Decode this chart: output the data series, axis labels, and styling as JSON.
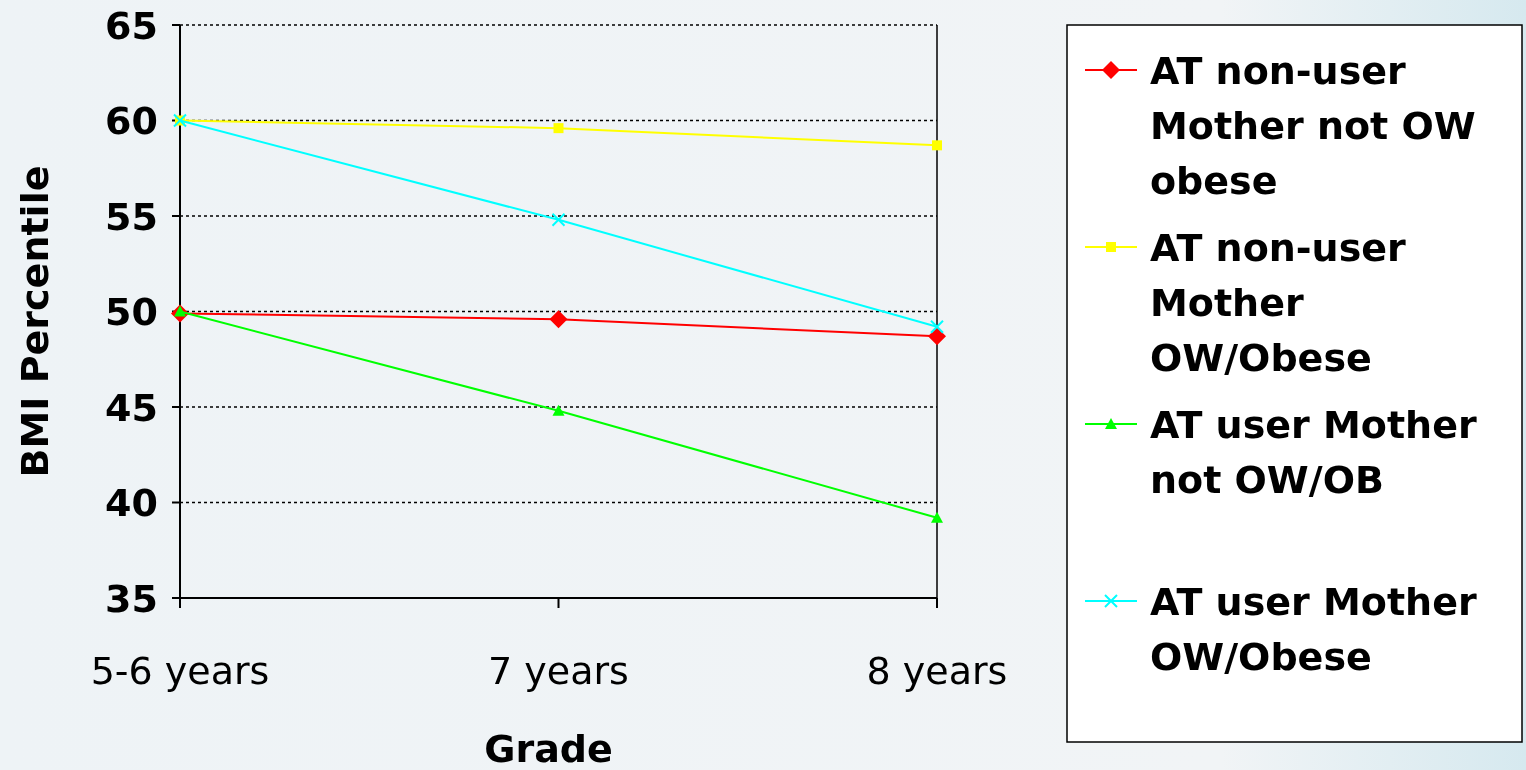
{
  "chart_data": {
    "type": "line",
    "xlabel": "Grade",
    "ylabel": "BMI Percentile",
    "categories": [
      "5-6 years",
      "7 years",
      "8 years"
    ],
    "series": [
      {
        "name": "AT non-user Mother not OW obese",
        "color": "#ff0000",
        "marker": "diamond",
        "values": [
          49.9,
          49.6,
          48.7
        ]
      },
      {
        "name": "AT non-user Mother OW/Obese",
        "color": "#ffff00",
        "marker": "square",
        "values": [
          60,
          59.6,
          58.7
        ]
      },
      {
        "name": "AT user Mother not OW/OB",
        "color": "#00ff00",
        "marker": "triangle",
        "values": [
          50,
          44.8,
          39.2
        ]
      },
      {
        "name": "AT user Mother OW/Obese",
        "color": "#00ffff",
        "marker": "cross",
        "values": [
          60,
          54.8,
          49.2
        ]
      }
    ],
    "ylim": [
      35,
      65
    ],
    "yticks": [
      35,
      40,
      45,
      50,
      55,
      60,
      65
    ],
    "grid": "y",
    "legend": "right"
  }
}
